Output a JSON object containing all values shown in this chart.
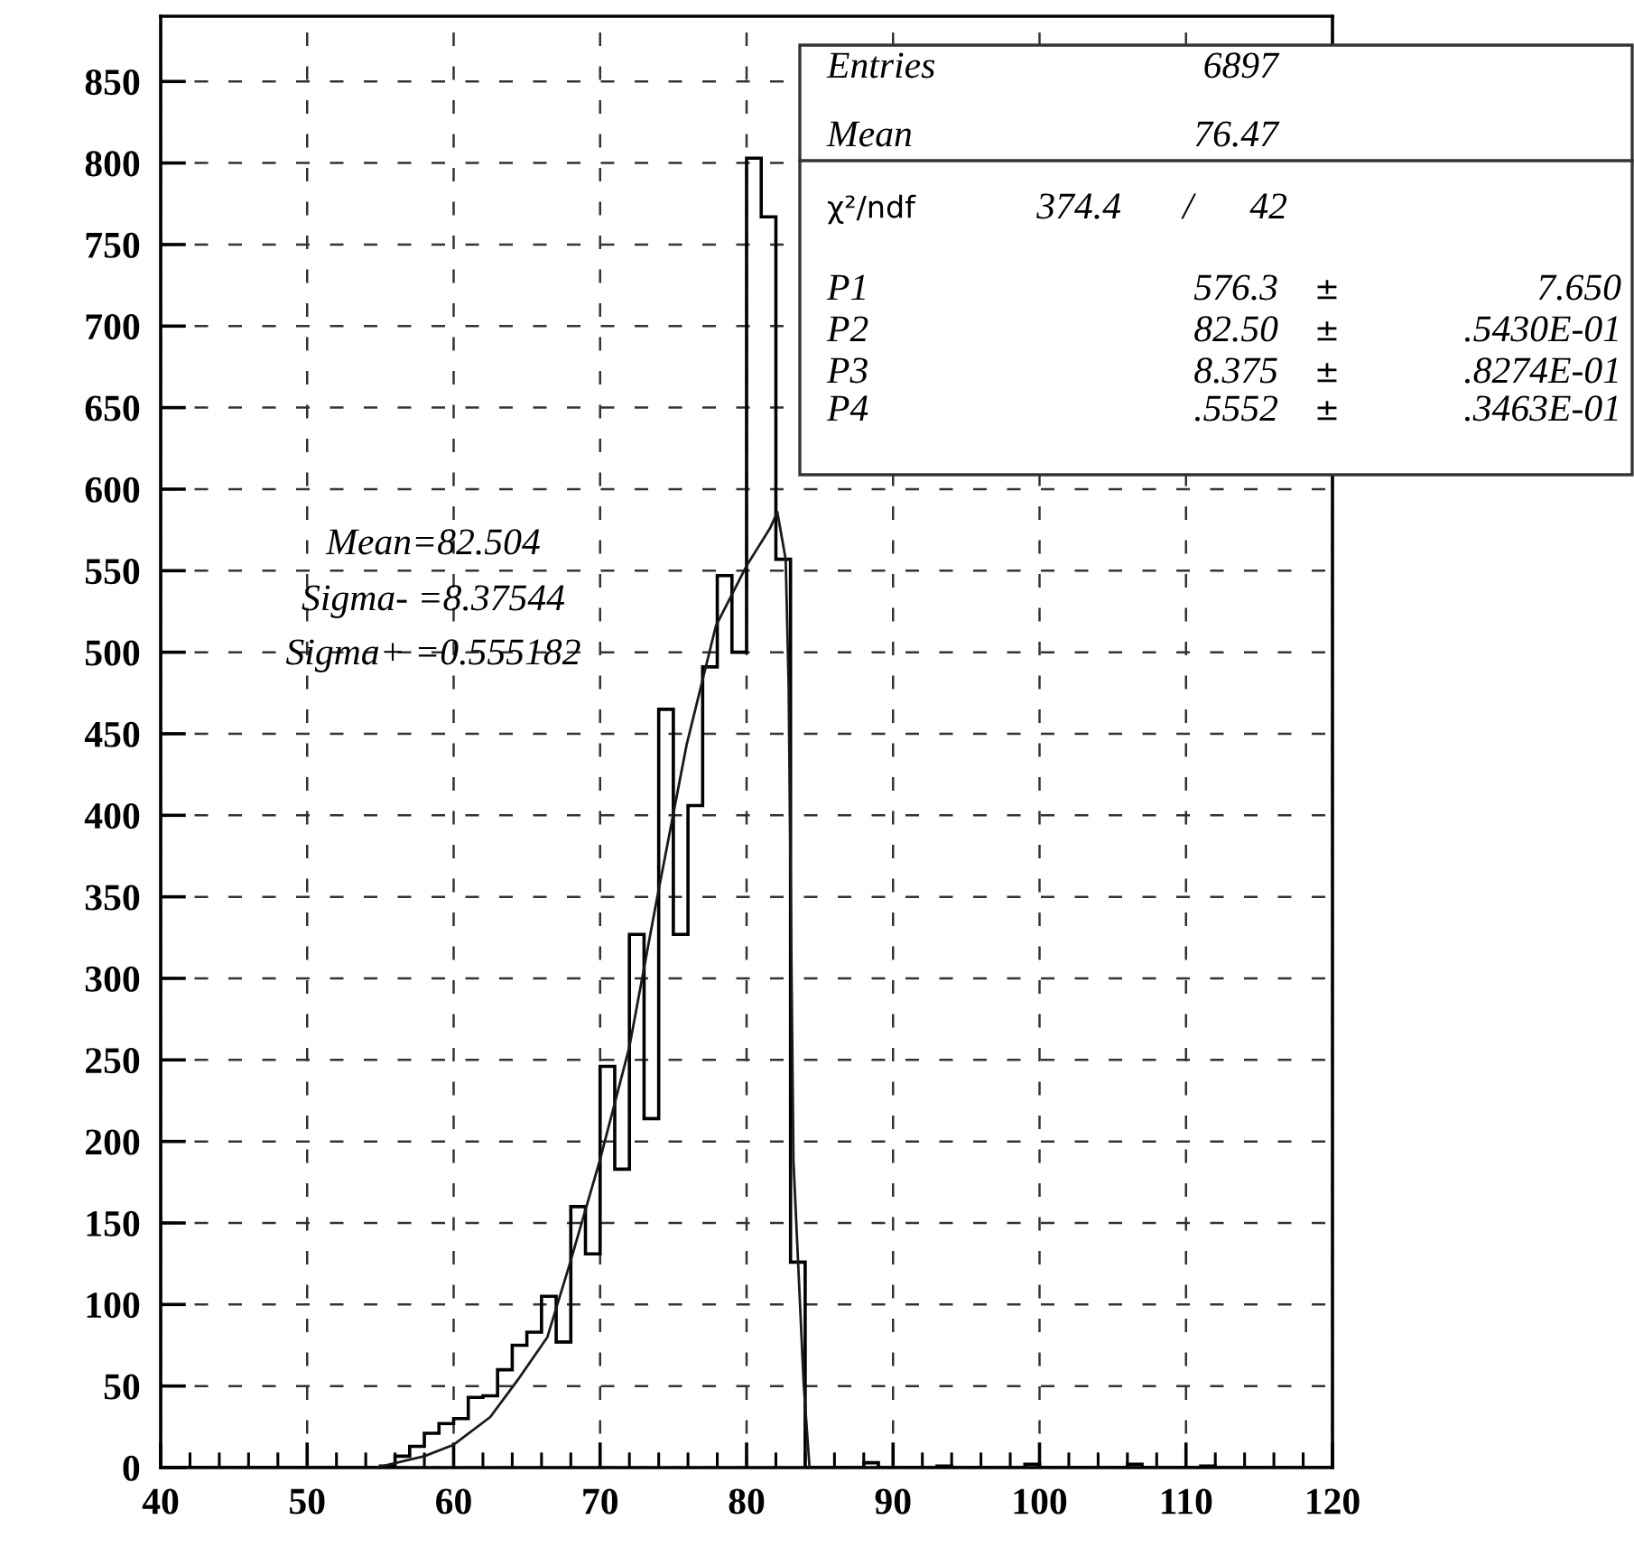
{
  "chart_data": {
    "type": "histogram",
    "bins": [
      40,
      41,
      42,
      43,
      44,
      45,
      46,
      47,
      48,
      49,
      50,
      51,
      52,
      53,
      54,
      55,
      56,
      57,
      58,
      59,
      60,
      61,
      62,
      63,
      64,
      65,
      66,
      67,
      68,
      69,
      70,
      71,
      72,
      73,
      74,
      75,
      76,
      77,
      78,
      79,
      80,
      81,
      82,
      83,
      84,
      85,
      86,
      87,
      88,
      89,
      90,
      91,
      92,
      93,
      94,
      95,
      96,
      97,
      98,
      99,
      100,
      101,
      102,
      103,
      104,
      105,
      106,
      107,
      108,
      109,
      110,
      111,
      112,
      113,
      114,
      115,
      116,
      117,
      118,
      119,
      120
    ],
    "values": [
      0,
      0,
      0,
      0,
      0,
      0,
      0,
      0,
      0,
      0,
      0,
      0,
      0,
      0,
      0,
      1,
      7,
      13,
      21,
      27,
      30,
      43,
      44,
      60,
      75,
      83,
      105,
      77,
      160,
      131,
      246,
      183,
      327,
      214,
      465,
      327,
      406,
      491,
      547,
      500,
      803,
      767,
      557,
      126,
      0,
      0,
      0,
      0,
      3,
      0,
      0,
      0,
      0,
      1,
      0,
      0,
      0,
      0,
      0,
      2,
      0,
      0,
      0,
      0,
      0,
      0,
      2,
      0,
      0,
      0,
      0,
      1,
      0,
      0,
      0,
      0,
      0,
      0,
      0,
      0
    ],
    "color": "#000000",
    "series": [
      {
        "type": "line",
        "color": "#1a1a1a",
        "x": [
          54.7,
          58.0,
          60.0,
          62.5,
          64.4,
          66.4,
          67.9,
          70.0,
          72.0,
          73.8,
          75.9,
          77.9,
          80.0,
          81.6,
          82.1,
          82.67,
          82.87,
          83.2,
          83.9,
          84.3
        ],
        "values": [
          0,
          7,
          14,
          31,
          54,
          80,
          124,
          189,
          258,
          345,
          443,
          516,
          553,
          576,
          586,
          557,
          480,
          188,
          51,
          0
        ]
      }
    ],
    "xlim": [
      40,
      120
    ],
    "ylim": [
      0,
      890
    ],
    "xticks": [
      40,
      {
        "value": 42,
        "label": null
      },
      {
        "value": 44,
        "label": null
      },
      {
        "value": 46,
        "label": null
      },
      {
        "value": 48,
        "label": null
      },
      50,
      {
        "value": 52,
        "label": null
      },
      {
        "value": 54,
        "label": null
      },
      {
        "value": 56,
        "label": null
      },
      {
        "value": 58,
        "label": null
      },
      60,
      {
        "value": 62,
        "label": null
      },
      {
        "value": 64,
        "label": null
      },
      {
        "value": 66,
        "label": null
      },
      {
        "value": 68,
        "label": null
      },
      70,
      {
        "value": 72,
        "label": null
      },
      {
        "value": 74,
        "label": null
      },
      {
        "value": 76,
        "label": null
      },
      {
        "value": 78,
        "label": null
      },
      80,
      {
        "value": 82,
        "label": null
      },
      {
        "value": 84,
        "label": null
      },
      {
        "value": 86,
        "label": null
      },
      {
        "value": 88,
        "label": null
      },
      90,
      {
        "value": 92,
        "label": null
      },
      {
        "value": 94,
        "label": null
      },
      {
        "value": 96,
        "label": null
      },
      {
        "value": 98,
        "label": null
      },
      100,
      {
        "value": 102,
        "label": null
      },
      {
        "value": 104,
        "label": null
      },
      {
        "value": 106,
        "label": null
      },
      {
        "value": 108,
        "label": null
      },
      110,
      {
        "value": 112,
        "label": null
      },
      {
        "value": 114,
        "label": null
      },
      {
        "value": 116,
        "label": null
      },
      {
        "value": 118,
        "label": null
      },
      120
    ],
    "yticks": [
      0,
      50,
      100,
      150,
      200,
      250,
      300,
      350,
      400,
      450,
      500,
      550,
      600,
      650,
      700,
      750,
      800,
      850
    ],
    "grid": true,
    "annotations": [
      "Mean=82.504",
      "Sigma- =8.37544",
      "Sigma+ =0.555182",
      "Entries",
      "6897",
      "Mean",
      "76.47",
      "χ²/ndf",
      "374.4",
      "/",
      "42",
      "P1",
      "576.3",
      "±",
      "7.650",
      "P2",
      "82.50",
      "±",
      ".5430E-01",
      "P3",
      "8.375",
      "±",
      ".8274E-01",
      "P4",
      ".5552",
      "±",
      ".3463E-01"
    ]
  }
}
